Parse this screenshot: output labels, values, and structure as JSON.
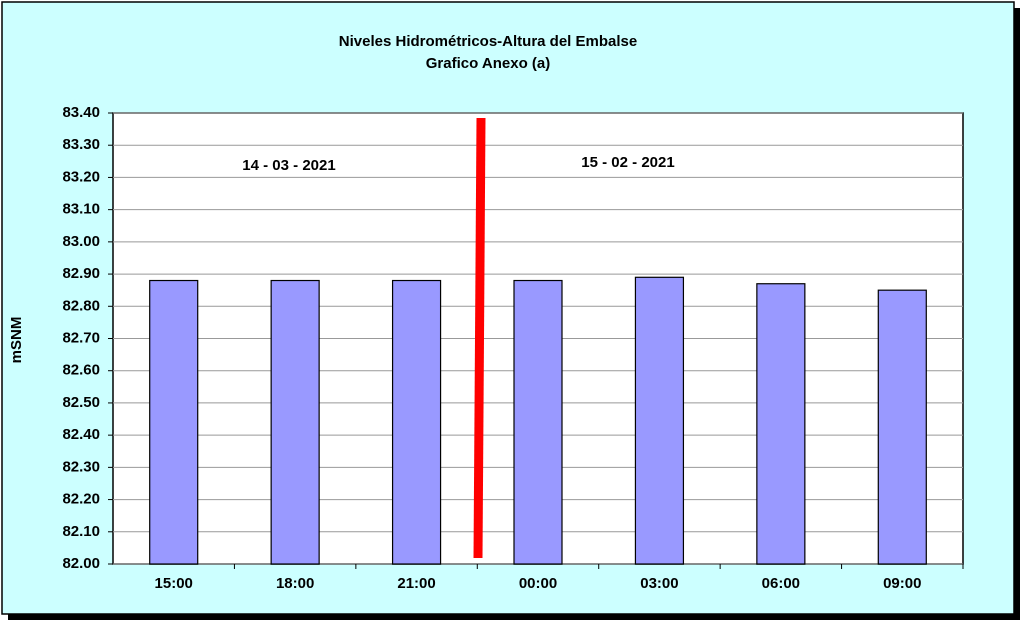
{
  "chart_data": {
    "type": "bar",
    "title": "Niveles Hidrométricos-Altura del Embalse",
    "subtitle": "Grafico Anexo (a)",
    "y_label": "mSNM",
    "annotations": [
      "14 - 03 - 2021",
      "15 - 02 - 2021"
    ],
    "categories": [
      "15:00",
      "18:00",
      "21:00",
      "00:00",
      "03:00",
      "06:00",
      "09:00"
    ],
    "values": [
      82.88,
      82.88,
      82.88,
      82.88,
      82.89,
      82.87,
      82.85
    ],
    "color": "#9999ff",
    "ylim": [
      82.0,
      83.4
    ],
    "yticks": [
      {
        "value": 82.0,
        "label": "82.00"
      },
      {
        "value": 82.1,
        "label": "82.10"
      },
      {
        "value": 82.2,
        "label": "82.20"
      },
      {
        "value": 82.3,
        "label": "82.30"
      },
      {
        "value": 82.4,
        "label": "82.40"
      },
      {
        "value": 82.5,
        "label": "82.50"
      },
      {
        "value": 82.6,
        "label": "82.60"
      },
      {
        "value": 82.7,
        "label": "82.70"
      },
      {
        "value": 82.8,
        "label": "82.80"
      },
      {
        "value": 82.9,
        "label": "82.90"
      },
      {
        "value": 83.0,
        "label": "83.00"
      },
      {
        "value": 83.1,
        "label": "83.10"
      },
      {
        "value": 83.2,
        "label": "83.20"
      },
      {
        "value": 83.3,
        "label": "83.30"
      },
      {
        "value": 83.4,
        "label": "83.40"
      }
    ],
    "grid": true
  }
}
